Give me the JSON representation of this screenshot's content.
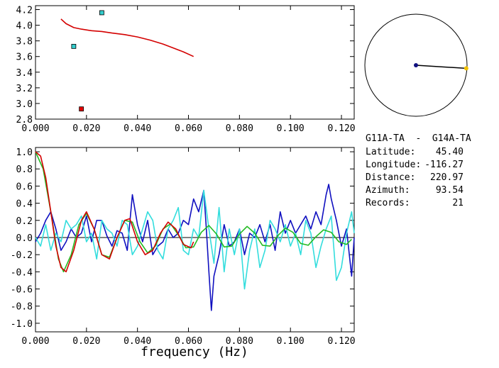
{
  "colors": {
    "background": "#ffffff",
    "frame": "#000000",
    "dispersion_curve": "#d40000",
    "marker_red": "#e00000",
    "marker_cyan": "#33cccc",
    "bessel_red": "#d40000",
    "bessel_green": "#22bb22",
    "data_blue": "#1010c0",
    "data_cyan": "#33dddd",
    "map_station_a": "#101080",
    "map_station_b": "#f0c000"
  },
  "station_info": {
    "title": "G11A-TA  -  G14A-TA",
    "rows": [
      {
        "label": "Latitude:",
        "value": "45.40"
      },
      {
        "label": "Longitude:",
        "value": "-116.27"
      },
      {
        "label": "Distance:",
        "value": "220.97"
      },
      {
        "label": "Azimuth:",
        "value": "93.54"
      },
      {
        "label": "Records:",
        "value": "21"
      }
    ]
  },
  "map": {
    "azimuth_deg": 93.54,
    "station_a": "station-center",
    "station_b": "station-remote"
  },
  "chart_data": [
    {
      "type": "line",
      "panel": "dispersion",
      "title": "",
      "xlabel": "",
      "ylabel": "",
      "xlim": [
        0.0,
        0.125
      ],
      "ylim": [
        2.8,
        4.25
      ],
      "xticks": [
        "0.000",
        "0.020",
        "0.040",
        "0.060",
        "0.080",
        "0.100",
        "0.120"
      ],
      "yticks": [
        "2.8",
        "3.0",
        "3.2",
        "3.4",
        "3.6",
        "3.8",
        "4.0",
        "4.2"
      ],
      "series": [
        {
          "name": "dispersion-curve",
          "color": "#d40000",
          "x": [
            0.01,
            0.012,
            0.015,
            0.018,
            0.022,
            0.026,
            0.03,
            0.035,
            0.04,
            0.045,
            0.05,
            0.054,
            0.058,
            0.062
          ],
          "y": [
            4.08,
            4.02,
            3.97,
            3.95,
            3.93,
            3.92,
            3.9,
            3.88,
            3.85,
            3.81,
            3.76,
            3.71,
            3.66,
            3.6
          ]
        }
      ],
      "points": [
        {
          "name": "point-cyan-1",
          "x": 0.026,
          "y": 4.16,
          "color": "#33cccc"
        },
        {
          "name": "point-cyan-2",
          "x": 0.015,
          "y": 3.73,
          "color": "#33cccc"
        },
        {
          "name": "point-red",
          "x": 0.018,
          "y": 2.93,
          "color": "#e00000"
        }
      ]
    },
    {
      "type": "line",
      "panel": "coherency",
      "title": "",
      "xlabel": "frequency (Hz)",
      "ylabel": "",
      "xlim": [
        0.0,
        0.125
      ],
      "ylim": [
        -1.1,
        1.05
      ],
      "xticks": [
        "0.000",
        "0.020",
        "0.040",
        "0.060",
        "0.080",
        "0.100",
        "0.120"
      ],
      "yticks": [
        "-1.0",
        "-0.8",
        "-0.6",
        "-0.4",
        "-0.2",
        "0.0",
        "0.2",
        "0.4",
        "0.6",
        "0.8",
        "1.0"
      ],
      "series": [
        {
          "name": "real-coherency",
          "color": "#1010c0",
          "x": [
            0.0,
            0.002,
            0.004,
            0.006,
            0.008,
            0.01,
            0.012,
            0.014,
            0.016,
            0.018,
            0.02,
            0.022,
            0.024,
            0.026,
            0.028,
            0.03,
            0.032,
            0.034,
            0.036,
            0.038,
            0.04,
            0.042,
            0.044,
            0.046,
            0.048,
            0.05,
            0.052,
            0.054,
            0.056,
            0.058,
            0.06,
            0.062,
            0.064,
            0.066,
            0.067,
            0.068,
            0.069,
            0.07,
            0.072,
            0.074,
            0.076,
            0.078,
            0.08,
            0.082,
            0.084,
            0.086,
            0.088,
            0.09,
            0.092,
            0.094,
            0.096,
            0.098,
            0.1,
            0.102,
            0.104,
            0.106,
            0.108,
            0.11,
            0.112,
            0.114,
            0.115,
            0.116,
            0.118,
            0.12,
            0.122,
            0.124,
            0.125
          ],
          "y": [
            -0.05,
            0.05,
            0.2,
            0.3,
            0.1,
            -0.15,
            -0.05,
            0.1,
            0.0,
            0.05,
            0.25,
            -0.05,
            0.2,
            0.2,
            0.02,
            -0.1,
            0.08,
            0.05,
            -0.15,
            0.5,
            0.15,
            -0.05,
            0.2,
            -0.2,
            -0.1,
            -0.05,
            0.1,
            0.0,
            0.05,
            0.2,
            0.15,
            0.45,
            0.3,
            0.55,
            0.1,
            -0.4,
            -0.85,
            -0.45,
            -0.2,
            0.15,
            -0.1,
            -0.05,
            0.1,
            -0.2,
            0.05,
            0.0,
            0.15,
            -0.05,
            0.15,
            -0.15,
            0.3,
            0.05,
            0.2,
            0.05,
            0.15,
            0.25,
            0.1,
            0.3,
            0.15,
            0.5,
            0.62,
            0.45,
            0.2,
            -0.1,
            0.1,
            -0.45,
            0.0
          ]
        },
        {
          "name": "imag-coherency",
          "color": "#33dddd",
          "x": [
            0.0,
            0.002,
            0.004,
            0.006,
            0.008,
            0.01,
            0.012,
            0.014,
            0.016,
            0.018,
            0.02,
            0.022,
            0.024,
            0.026,
            0.028,
            0.03,
            0.032,
            0.034,
            0.036,
            0.038,
            0.04,
            0.042,
            0.044,
            0.046,
            0.048,
            0.05,
            0.052,
            0.054,
            0.056,
            0.058,
            0.06,
            0.062,
            0.064,
            0.066,
            0.068,
            0.07,
            0.072,
            0.074,
            0.076,
            0.078,
            0.08,
            0.082,
            0.084,
            0.086,
            0.088,
            0.09,
            0.092,
            0.094,
            0.096,
            0.098,
            0.1,
            0.102,
            0.104,
            0.106,
            0.108,
            0.11,
            0.112,
            0.114,
            0.116,
            0.118,
            0.12,
            0.122,
            0.124,
            0.125
          ],
          "y": [
            0.0,
            -0.1,
            0.15,
            -0.15,
            0.05,
            -0.05,
            0.2,
            0.1,
            0.15,
            0.25,
            -0.05,
            0.05,
            -0.25,
            0.2,
            0.1,
            0.05,
            -0.1,
            0.2,
            0.15,
            -0.2,
            -0.1,
            0.1,
            0.3,
            0.2,
            -0.15,
            -0.25,
            0.1,
            0.2,
            0.35,
            -0.15,
            -0.2,
            0.1,
            0.0,
            0.55,
            0.1,
            -0.3,
            0.35,
            -0.4,
            0.1,
            -0.2,
            0.1,
            -0.6,
            -0.15,
            0.1,
            -0.35,
            -0.15,
            0.2,
            0.1,
            -0.05,
            0.15,
            -0.1,
            0.05,
            -0.2,
            0.2,
            0.05,
            -0.35,
            -0.1,
            0.1,
            0.25,
            -0.5,
            -0.35,
            0.05,
            0.3,
            0.05
          ]
        },
        {
          "name": "bessel-model",
          "color": "#22bb22",
          "x": [
            0.0,
            0.003,
            0.006,
            0.009,
            0.011,
            0.014,
            0.017,
            0.02,
            0.023,
            0.026,
            0.029,
            0.032,
            0.035,
            0.038,
            0.041,
            0.044,
            0.047,
            0.05,
            0.053,
            0.056,
            0.059,
            0.062,
            0.065,
            0.068,
            0.071,
            0.074,
            0.077,
            0.08,
            0.083,
            0.086,
            0.089,
            0.092,
            0.095,
            0.098,
            0.101,
            0.104,
            0.107,
            0.11,
            0.113,
            0.116,
            0.119,
            0.122,
            0.124
          ],
          "y": [
            1.0,
            0.8,
            0.3,
            -0.25,
            -0.4,
            -0.2,
            0.15,
            0.28,
            0.1,
            -0.2,
            -0.23,
            0.0,
            0.2,
            0.18,
            -0.05,
            -0.18,
            -0.1,
            0.1,
            0.16,
            0.03,
            -0.12,
            -0.11,
            0.06,
            0.14,
            0.04,
            -0.11,
            -0.1,
            0.04,
            0.13,
            0.05,
            -0.09,
            -0.1,
            0.02,
            0.11,
            0.06,
            -0.07,
            -0.09,
            0.01,
            0.09,
            0.06,
            -0.05,
            -0.08,
            -0.02
          ]
        },
        {
          "name": "bessel-fit",
          "color": "#d40000",
          "x": [
            0.0,
            0.002,
            0.004,
            0.006,
            0.008,
            0.01,
            0.012,
            0.015,
            0.018,
            0.02,
            0.023,
            0.026,
            0.029,
            0.032,
            0.035,
            0.037,
            0.04,
            0.043,
            0.046,
            0.049,
            0.052,
            0.055,
            0.058,
            0.061,
            0.062
          ],
          "y": [
            1.0,
            0.95,
            0.7,
            0.3,
            -0.1,
            -0.35,
            -0.4,
            -0.15,
            0.2,
            0.3,
            0.1,
            -0.2,
            -0.25,
            0.0,
            0.2,
            0.22,
            -0.05,
            -0.2,
            -0.15,
            0.05,
            0.18,
            0.1,
            -0.08,
            -0.12,
            -0.05
          ]
        }
      ]
    }
  ]
}
